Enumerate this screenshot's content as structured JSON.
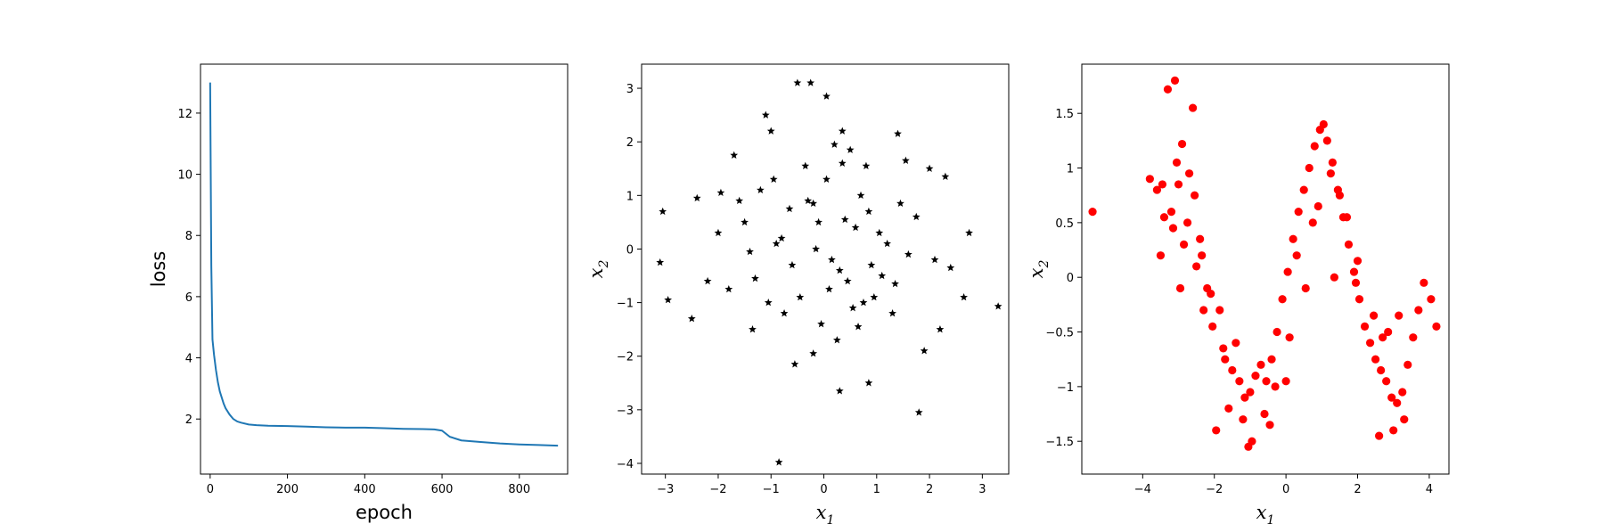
{
  "chart_data": [
    {
      "type": "line",
      "xlabel": "epoch",
      "ylabel": "loss",
      "xlim": [
        -25,
        925
      ],
      "ylim": [
        0.2,
        13.6
      ],
      "xticks": [
        0,
        200,
        400,
        600,
        800
      ],
      "yticks": [
        2,
        4,
        6,
        8,
        10,
        12
      ],
      "color": "#1f77b4",
      "grid": false,
      "series": [
        {
          "x": [
            0,
            3,
            6,
            10,
            15,
            20,
            25,
            30,
            35,
            40,
            50,
            60,
            70,
            80,
            100,
            120,
            150,
            200,
            250,
            300,
            350,
            400,
            450,
            500,
            550,
            580,
            600,
            620,
            650,
            700,
            750,
            800,
            850,
            900
          ],
          "values": [
            13.0,
            7.0,
            4.6,
            4.1,
            3.6,
            3.2,
            2.9,
            2.7,
            2.5,
            2.35,
            2.15,
            2.0,
            1.92,
            1.88,
            1.82,
            1.8,
            1.78,
            1.77,
            1.75,
            1.73,
            1.72,
            1.72,
            1.7,
            1.68,
            1.67,
            1.66,
            1.62,
            1.42,
            1.3,
            1.25,
            1.2,
            1.17,
            1.15,
            1.13
          ]
        }
      ]
    },
    {
      "type": "scatter",
      "xlabel": "x",
      "xlabel_sub": "1",
      "ylabel": "x",
      "ylabel_sub": "2",
      "xlim": [
        -3.45,
        3.5
      ],
      "ylim": [
        -4.2,
        3.45
      ],
      "xticks": [
        -3,
        -2,
        -1,
        0,
        1,
        2,
        3
      ],
      "yticks": [
        -4,
        -3,
        -2,
        -1,
        0,
        1,
        2,
        3
      ],
      "marker": "star",
      "color": "#000000",
      "grid": false,
      "series": [
        {
          "x": [
            -0.85,
            -0.5,
            -0.25,
            0.05,
            -1.1,
            0.3,
            1.8,
            -3.05,
            -3.1,
            3.3,
            2.75,
            2.65,
            -2.4,
            -2.5,
            -2.95,
            0.35,
            0.85,
            -0.55,
            -0.2,
            1.4,
            1.55,
            2.0,
            2.3,
            1.3,
            -1.0,
            -1.7,
            -1.95,
            1.9,
            2.4,
            2.2,
            -1.35,
            -1.3,
            0.9,
            0.6,
            -0.1,
            0.15,
            -0.8,
            0.7,
            1.05,
            -0.45,
            -0.65,
            0.45,
            1.2,
            -1.5,
            -1.8,
            0.05,
            0.25,
            -0.3,
            0.55,
            0.95,
            -1.05,
            -0.15,
            0.35,
            1.6,
            1.75,
            -2.0,
            0.8,
            -0.95,
            0.1,
            -0.6,
            1.45,
            0.65,
            -1.2,
            0.4,
            -0.35,
            0.2,
            1.1,
            -0.75,
            -1.6,
            2.1,
            -2.2,
            -0.05,
            0.5,
            -1.4,
            0.85,
            1.35,
            -0.9,
            0.3,
            -0.2,
            0.75
          ],
          "values": [
            -3.98,
            3.1,
            3.1,
            2.85,
            2.5,
            -2.65,
            -3.05,
            0.7,
            -0.25,
            -1.07,
            0.3,
            -0.9,
            0.95,
            -1.3,
            -0.95,
            2.2,
            -2.5,
            -2.15,
            -1.95,
            2.15,
            1.65,
            1.5,
            1.35,
            -1.2,
            2.2,
            1.75,
            1.05,
            -1.9,
            -0.35,
            -1.5,
            -1.5,
            -0.55,
            -0.3,
            0.4,
            0.5,
            -0.2,
            0.2,
            1.0,
            0.3,
            -0.9,
            0.75,
            -0.6,
            0.1,
            0.5,
            -0.75,
            1.3,
            -1.7,
            0.9,
            -1.1,
            -0.9,
            -1.0,
            0.0,
            1.6,
            -0.1,
            0.6,
            0.3,
            1.55,
            1.3,
            -0.75,
            -0.3,
            0.85,
            -1.45,
            1.1,
            0.55,
            1.55,
            1.95,
            -0.5,
            -1.2,
            0.9,
            -0.2,
            -0.6,
            -1.4,
            1.85,
            -0.05,
            0.7,
            -0.65,
            0.1,
            -0.4,
            0.85,
            -1.0
          ]
        }
      ]
    },
    {
      "type": "scatter",
      "xlabel": "x",
      "xlabel_sub": "1",
      "ylabel": "x",
      "ylabel_sub": "2",
      "xlim": [
        -5.7,
        4.55
      ],
      "ylim": [
        -1.8,
        1.95
      ],
      "xticks": [
        -4,
        -2,
        0,
        2,
        4
      ],
      "yticks": [
        -1.5,
        -1.0,
        -0.5,
        0.0,
        0.5,
        1.0,
        1.5
      ],
      "marker": "circle",
      "color": "#ff0000",
      "grid": false,
      "series": [
        {
          "x": [
            -5.4,
            -3.6,
            -3.3,
            -3.1,
            -3.05,
            -2.9,
            -2.6,
            -3.5,
            -3.2,
            -3.0,
            -2.75,
            -2.5,
            -2.3,
            -2.7,
            -2.85,
            -2.95,
            -3.4,
            -3.15,
            -2.55,
            -2.4,
            -2.2,
            -2.05,
            -1.85,
            -1.7,
            -1.5,
            -1.3,
            -1.15,
            -1.0,
            -0.85,
            -0.7,
            -0.55,
            -0.4,
            -0.25,
            -0.1,
            0.05,
            0.2,
            0.35,
            0.5,
            0.65,
            0.8,
            0.95,
            1.05,
            1.15,
            1.3,
            1.45,
            1.6,
            1.75,
            1.9,
            2.05,
            2.2,
            2.35,
            2.5,
            2.65,
            2.8,
            2.95,
            3.1,
            3.25,
            3.4,
            3.55,
            3.7,
            3.85,
            4.05,
            4.2,
            -1.95,
            -1.6,
            -1.2,
            -0.95,
            -0.6,
            -1.4,
            -0.3,
            0.1,
            0.55,
            0.9,
            1.25,
            1.7,
            2.0,
            2.6,
            3.0,
            3.3,
            2.7,
            3.15,
            -3.45,
            -3.8,
            -2.35,
            -2.1,
            -1.75,
            0.3,
            0.75,
            1.5,
            1.95,
            2.45,
            2.85,
            -1.05,
            -0.45,
            0.0,
            1.35
          ],
          "values": [
            0.6,
            0.8,
            1.72,
            1.8,
            1.05,
            1.22,
            1.55,
            0.2,
            0.6,
            0.85,
            0.5,
            0.1,
            -0.3,
            0.95,
            0.3,
            -0.1,
            0.55,
            0.45,
            0.75,
            0.35,
            -0.1,
            -0.45,
            -0.3,
            -0.75,
            -0.85,
            -0.95,
            -1.1,
            -1.05,
            -0.9,
            -0.8,
            -0.95,
            -0.75,
            -0.5,
            -0.2,
            0.05,
            0.35,
            0.6,
            0.8,
            1.0,
            1.2,
            1.35,
            1.4,
            1.25,
            1.05,
            0.8,
            0.55,
            0.3,
            0.05,
            -0.2,
            -0.45,
            -0.6,
            -0.75,
            -0.85,
            -0.95,
            -1.1,
            -1.15,
            -1.05,
            -0.8,
            -0.55,
            -0.3,
            -0.05,
            -0.2,
            -0.45,
            -1.4,
            -1.2,
            -1.3,
            -1.5,
            -1.25,
            -0.6,
            -1.0,
            -0.55,
            -0.1,
            0.65,
            0.95,
            0.55,
            0.15,
            -1.45,
            -1.4,
            -1.3,
            -0.55,
            -0.35,
            0.85,
            0.9,
            0.2,
            -0.15,
            -0.65,
            0.2,
            0.5,
            0.75,
            -0.05,
            -0.35,
            -0.5,
            -1.55,
            -1.35,
            -0.95,
            0.0
          ]
        }
      ]
    }
  ]
}
